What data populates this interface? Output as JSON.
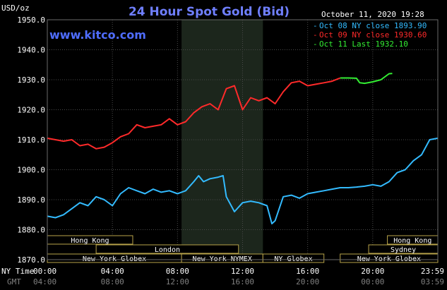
{
  "chart_data": {
    "type": "line",
    "title": "24 Hour Spot Gold (Bid)",
    "y_unit_label": "USD/oz",
    "website": "www.kitco.com",
    "timestamp": "October 11, 2020 19:28",
    "ylim": [
      1870,
      1950
    ],
    "xlim": [
      0,
      24
    ],
    "y_ticks": [
      "1950.0",
      "1940.0",
      "1930.0",
      "1920.0",
      "1910.0",
      "1900.0",
      "1890.0",
      "1880.0",
      "1870.0"
    ],
    "y_tick_values": [
      1950,
      1940,
      1930,
      1920,
      1910,
      1900,
      1890,
      1880,
      1870
    ],
    "x_tick_hours": [
      0,
      4,
      8,
      12,
      16,
      20,
      24
    ],
    "x_ticks_ny": [
      "00:00",
      "04:00",
      "08:00",
      "12:00",
      "16:00",
      "20:00",
      "23:59"
    ],
    "x_ticks_gmt": [
      "04:00",
      "08:00",
      "12:00",
      "16:00",
      "20:00",
      "00:00",
      "03:59"
    ],
    "axis_row_labels": {
      "ny": "NY Time",
      "gmt": "GMT"
    },
    "shaded_region_hours": [
      8.25,
      13.25
    ],
    "grid": true,
    "legend_position": "top-right",
    "series": [
      {
        "name": "Oct 08 NY close 1893.90",
        "color": "#33bbff",
        "points": [
          [
            0,
            1884.5
          ],
          [
            0.5,
            1884
          ],
          [
            1,
            1885
          ],
          [
            1.5,
            1887
          ],
          [
            2,
            1889
          ],
          [
            2.5,
            1888
          ],
          [
            3,
            1891
          ],
          [
            3.5,
            1890
          ],
          [
            4,
            1888
          ],
          [
            4.5,
            1892
          ],
          [
            5,
            1894
          ],
          [
            5.5,
            1893
          ],
          [
            6,
            1892
          ],
          [
            6.5,
            1893.5
          ],
          [
            7,
            1892.5
          ],
          [
            7.5,
            1893
          ],
          [
            8,
            1892
          ],
          [
            8.5,
            1893
          ],
          [
            9,
            1896
          ],
          [
            9.3,
            1898
          ],
          [
            9.6,
            1896
          ],
          [
            10,
            1897
          ],
          [
            10.5,
            1897.5
          ],
          [
            10.8,
            1898
          ],
          [
            11,
            1891
          ],
          [
            11.5,
            1886
          ],
          [
            12,
            1889
          ],
          [
            12.5,
            1889.5
          ],
          [
            13,
            1889
          ],
          [
            13.5,
            1888
          ],
          [
            13.8,
            1882
          ],
          [
            14,
            1883
          ],
          [
            14.5,
            1891
          ],
          [
            15,
            1891.5
          ],
          [
            15.5,
            1890.5
          ],
          [
            16,
            1892
          ],
          [
            16.5,
            1892.5
          ],
          [
            17,
            1893
          ],
          [
            17.5,
            1893.5
          ],
          [
            18,
            1894
          ],
          [
            18.5,
            1894
          ],
          [
            19,
            1894.2
          ],
          [
            19.5,
            1894.5
          ],
          [
            20,
            1895
          ],
          [
            20.5,
            1894.5
          ],
          [
            21,
            1896
          ],
          [
            21.5,
            1899
          ],
          [
            22,
            1900
          ],
          [
            22.5,
            1903
          ],
          [
            23,
            1905
          ],
          [
            23.5,
            1910
          ],
          [
            24,
            1910.5
          ]
        ]
      },
      {
        "name": "Oct 09 NY close 1930.60",
        "color": "#ff2a2a",
        "points": [
          [
            0,
            1910.5
          ],
          [
            0.5,
            1910
          ],
          [
            1,
            1909.5
          ],
          [
            1.5,
            1910
          ],
          [
            2,
            1908
          ],
          [
            2.5,
            1908.5
          ],
          [
            3,
            1907
          ],
          [
            3.5,
            1907.5
          ],
          [
            4,
            1909
          ],
          [
            4.5,
            1911
          ],
          [
            5,
            1912
          ],
          [
            5.5,
            1915
          ],
          [
            6,
            1914
          ],
          [
            6.5,
            1914.5
          ],
          [
            7,
            1915
          ],
          [
            7.5,
            1917
          ],
          [
            8,
            1915
          ],
          [
            8.5,
            1916
          ],
          [
            9,
            1919
          ],
          [
            9.5,
            1921
          ],
          [
            10,
            1922
          ],
          [
            10.5,
            1920
          ],
          [
            11,
            1927
          ],
          [
            11.5,
            1928
          ],
          [
            12,
            1920
          ],
          [
            12.5,
            1924
          ],
          [
            13,
            1923
          ],
          [
            13.5,
            1924
          ],
          [
            14,
            1922
          ],
          [
            14.5,
            1926
          ],
          [
            15,
            1929
          ],
          [
            15.5,
            1929.5
          ],
          [
            16,
            1928
          ],
          [
            16.5,
            1928.5
          ],
          [
            17,
            1929
          ],
          [
            17.5,
            1929.5
          ],
          [
            18,
            1930.6
          ]
        ]
      },
      {
        "name": "Oct 11 Last 1932.10",
        "color": "#33ee33",
        "points": [
          [
            18,
            1930.6
          ],
          [
            18.5,
            1930.6
          ],
          [
            19,
            1930.5
          ],
          [
            19.2,
            1929
          ],
          [
            19.5,
            1928.8
          ],
          [
            20,
            1929.3
          ],
          [
            20.5,
            1930
          ],
          [
            21,
            1932
          ],
          [
            21.2,
            1932.1
          ]
        ]
      }
    ],
    "sessions": [
      {
        "label": "Hong Kong",
        "start": 0,
        "end": 5.25,
        "row": 0
      },
      {
        "label": "Hong Kong",
        "start": 20.9,
        "end": 24,
        "row": 0
      },
      {
        "label": "London",
        "start": 3,
        "end": 11.75,
        "row": 1
      },
      {
        "label": "Sydney",
        "start": 19.75,
        "end": 24,
        "row": 1
      },
      {
        "label": "New York Globex",
        "start": 0,
        "end": 8.25,
        "row": 2
      },
      {
        "label": "New York NYMEX",
        "start": 8.25,
        "end": 13.25,
        "row": 2
      },
      {
        "label": "NY Globex",
        "start": 13.25,
        "end": 17,
        "row": 2
      },
      {
        "label": "New York Globex",
        "start": 18,
        "end": 24,
        "row": 2
      }
    ],
    "colors": {
      "background": "#000000",
      "shaded": "#1c261c",
      "grid": "#4a4a4a",
      "title": "#6f7fff",
      "website": "#4f6dff",
      "session_border": "#b8a34a"
    }
  }
}
